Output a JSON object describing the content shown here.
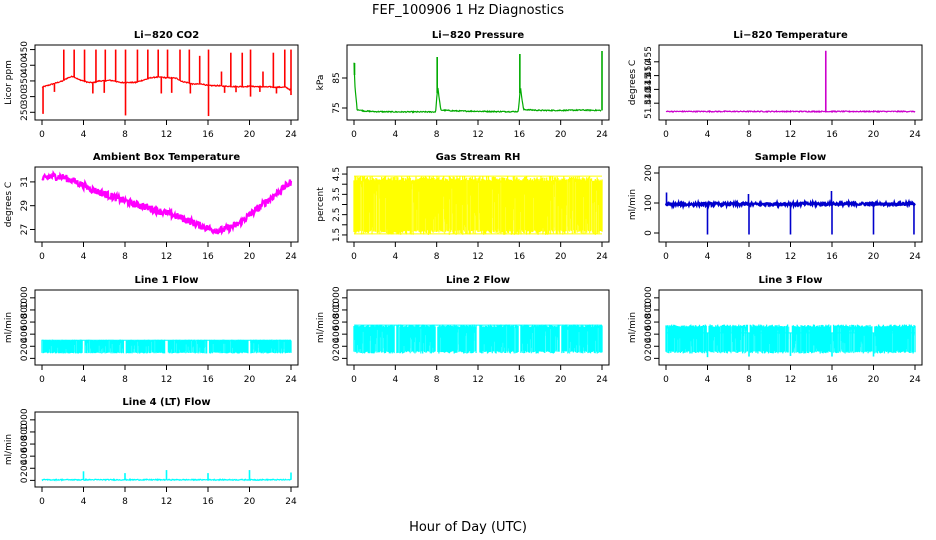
{
  "figure": {
    "title": "FEF_100906  1 Hz Diagnostics",
    "xlabel": "Hour of Day (UTC)"
  },
  "chart_data": [
    {
      "type": "line",
      "title": "Li−820 CO2",
      "ylabel": "Licor ppm",
      "color": "#ff0000",
      "xlim": [
        0,
        24
      ],
      "xticks": [
        0,
        4,
        8,
        12,
        16,
        20,
        24
      ],
      "ylim": [
        235,
        455
      ],
      "yticks": [
        250,
        300,
        350,
        400,
        450
      ],
      "series": [
        {
          "x": [
            0,
            0.5,
            1,
            1.5,
            2,
            2.5,
            3,
            3.5,
            4,
            4.5,
            5,
            5.5,
            6,
            6.5,
            7,
            7.5,
            8,
            8.5,
            9,
            9.5,
            10,
            10.5,
            11,
            11.5,
            12,
            12.5,
            13,
            13.5,
            14,
            14.5,
            15,
            15.5,
            16,
            16.5,
            17,
            17.5,
            18,
            18.5,
            19,
            19.5,
            20,
            20.5,
            21,
            21.5,
            22,
            22.5,
            23,
            23.5,
            24
          ],
          "y": [
            330,
            335,
            340,
            345,
            350,
            360,
            365,
            355,
            350,
            345,
            345,
            350,
            350,
            352,
            350,
            345,
            345,
            345,
            345,
            350,
            355,
            360,
            362,
            362,
            360,
            360,
            358,
            348,
            345,
            340,
            340,
            340,
            335,
            335,
            335,
            333,
            333,
            332,
            332,
            332,
            333,
            332,
            332,
            331,
            331,
            330,
            330,
            330,
            320
          ]
        }
      ],
      "spikes": [
        {
          "x": 2.1,
          "y": 450
        },
        {
          "x": 3.1,
          "y": 450
        },
        {
          "x": 4.1,
          "y": 450
        },
        {
          "x": 5.2,
          "y": 450
        },
        {
          "x": 6.1,
          "y": 450
        },
        {
          "x": 7.1,
          "y": 450
        },
        {
          "x": 8.05,
          "y": 450
        },
        {
          "x": 9.2,
          "y": 450
        },
        {
          "x": 10.2,
          "y": 450
        },
        {
          "x": 11.2,
          "y": 450
        },
        {
          "x": 12.1,
          "y": 450
        },
        {
          "x": 13.3,
          "y": 450
        },
        {
          "x": 14.2,
          "y": 450
        },
        {
          "x": 15.2,
          "y": 430
        },
        {
          "x": 16.05,
          "y": 450
        },
        {
          "x": 17.3,
          "y": 380
        },
        {
          "x": 18.2,
          "y": 440
        },
        {
          "x": 19.3,
          "y": 440
        },
        {
          "x": 20.1,
          "y": 450
        },
        {
          "x": 21.3,
          "y": 380
        },
        {
          "x": 22.3,
          "y": 440
        },
        {
          "x": 23.4,
          "y": 450
        },
        {
          "x": 24,
          "y": 450
        }
      ],
      "dips": [
        {
          "x": 0.1,
          "y": 245
        },
        {
          "x": 8.05,
          "y": 240
        },
        {
          "x": 16.05,
          "y": 238
        },
        {
          "x": 1.2,
          "y": 315
        },
        {
          "x": 4.9,
          "y": 310
        },
        {
          "x": 6.0,
          "y": 312
        },
        {
          "x": 11.5,
          "y": 310
        },
        {
          "x": 12.5,
          "y": 312
        },
        {
          "x": 14.3,
          "y": 310
        },
        {
          "x": 17.6,
          "y": 312
        },
        {
          "x": 18.7,
          "y": 314
        },
        {
          "x": 20.1,
          "y": 300
        },
        {
          "x": 21.0,
          "y": 315
        },
        {
          "x": 22.6,
          "y": 310
        },
        {
          "x": 24,
          "y": 305
        }
      ]
    },
    {
      "type": "line",
      "title": "Li−820 Pressure",
      "ylabel": "kPa",
      "color": "#00aa00",
      "xlim": [
        0,
        24
      ],
      "xticks": [
        0,
        4,
        8,
        12,
        16,
        20,
        24
      ],
      "ylim": [
        72,
        95
      ],
      "yticks": [
        75,
        85
      ],
      "series": [
        {
          "x": [
            0,
            0.1,
            0.3,
            1,
            2,
            4,
            6,
            7.9,
            8.1,
            8.4,
            10,
            12,
            14,
            15.9,
            16.1,
            16.4,
            18,
            20,
            22,
            23.9
          ],
          "y": [
            90,
            82,
            74.5,
            74,
            73.8,
            73.7,
            73.7,
            73.7,
            82,
            74.3,
            74,
            73.9,
            73.8,
            73.8,
            82,
            74.5,
            74.2,
            74.2,
            74.3,
            74.2
          ]
        }
      ],
      "spikes": [
        {
          "x": 0.05,
          "y": 90
        },
        {
          "x": 8.05,
          "y": 92
        },
        {
          "x": 16.05,
          "y": 93
        },
        {
          "x": 24,
          "y": 94
        }
      ],
      "dips": []
    },
    {
      "type": "line",
      "title": "Li−820 Temperature",
      "ylabel": "degrees C",
      "color": "#cc00cc",
      "xlim": [
        0,
        24
      ],
      "xticks": [
        0,
        4,
        8,
        12,
        16,
        20,
        24
      ],
      "ylim": [
        51.435,
        51.46
      ],
      "yticks": [
        51.44,
        51.445,
        51.45,
        51.455
      ],
      "ytick_labels": [
        "51.440",
        "51.445",
        "51.450",
        "51.455"
      ],
      "series": [
        {
          "x": [
            0,
            24
          ],
          "y": [
            51.437,
            51.437
          ]
        }
      ],
      "spikes": [
        {
          "x": 15.4,
          "y": 51.459
        }
      ],
      "dips": []
    },
    {
      "type": "line",
      "title": "Ambient Box Temperature",
      "ylabel": "degrees C",
      "color": "#ff00ff",
      "xlim": [
        0,
        24
      ],
      "xticks": [
        0,
        4,
        8,
        12,
        16,
        20,
        24
      ],
      "ylim": [
        26.2,
        32.0
      ],
      "yticks": [
        27,
        29,
        31
      ],
      "band": 0.6,
      "series": [
        {
          "x": [
            0,
            1,
            2,
            3,
            4,
            5,
            6,
            7,
            8,
            9,
            10,
            11,
            12,
            13,
            14,
            15,
            16,
            17,
            18,
            19,
            20,
            21,
            22,
            23,
            24
          ],
          "y": [
            31.2,
            31.5,
            31.4,
            31.1,
            30.7,
            30.3,
            30.0,
            29.7,
            29.4,
            29.1,
            28.9,
            28.6,
            28.4,
            28.1,
            27.8,
            27.4,
            27.1,
            26.9,
            27.1,
            27.5,
            28.2,
            28.9,
            29.6,
            30.3,
            31.0
          ]
        }
      ],
      "spikes": [],
      "dips": []
    },
    {
      "type": "line",
      "title": "Gas Stream RH",
      "ylabel": "percent",
      "color": "#ffff00",
      "xlim": [
        0,
        24
      ],
      "xticks": [
        0,
        4,
        8,
        12,
        16,
        20,
        24
      ],
      "ylim": [
        1.3,
        4.7
      ],
      "yticks": [
        1.5,
        2.5,
        3.5,
        4.5
      ],
      "yticks_minor": [
        2.0,
        3.0,
        4.0
      ],
      "ytick_labels": [
        "1.5",
        "2.5",
        "3.5",
        "4.5"
      ],
      "filled_range": [
        1.5,
        4.4
      ],
      "series": [
        {
          "x": [
            0,
            24
          ],
          "y": [
            4.4,
            4.4
          ]
        },
        {
          "x": [
            0,
            24
          ],
          "y": [
            1.55,
            1.55
          ]
        }
      ],
      "spikes": [],
      "dips": []
    },
    {
      "type": "line",
      "title": "Sample Flow",
      "ylabel": "ml/min",
      "color": "#0000cc",
      "xlim": [
        0,
        24
      ],
      "xticks": [
        0,
        4,
        8,
        12,
        16,
        20,
        24
      ],
      "ylim": [
        -20,
        210
      ],
      "yticks": [
        0,
        100,
        200
      ],
      "band": 10,
      "series": [
        {
          "x": [
            0,
            4,
            8,
            12,
            16,
            20,
            24
          ],
          "y": [
            95,
            96,
            96,
            97,
            97,
            97,
            97
          ]
        }
      ],
      "spikes": [
        {
          "x": 0.05,
          "y": 135
        },
        {
          "x": 7.95,
          "y": 130
        },
        {
          "x": 15.95,
          "y": 140
        }
      ],
      "dips": [
        {
          "x": 4,
          "y": -5
        },
        {
          "x": 8,
          "y": -5
        },
        {
          "x": 12,
          "y": -5
        },
        {
          "x": 16,
          "y": -5
        },
        {
          "x": 20,
          "y": -5
        },
        {
          "x": 23.9,
          "y": -5
        }
      ]
    },
    {
      "type": "line",
      "title": "Line 1 Flow",
      "ylabel": "ml/min",
      "color": "#00ffff",
      "xlim": [
        0,
        24
      ],
      "xticks": [
        0,
        4,
        8,
        12,
        16,
        20,
        24
      ],
      "ylim": [
        -60,
        1080
      ],
      "yticks": [
        0,
        200,
        400,
        600,
        800,
        1000
      ],
      "filled_range": [
        80,
        310
      ],
      "gaps": [
        4,
        8,
        12,
        16,
        20
      ],
      "series": [
        {
          "x": [
            0,
            24
          ],
          "y": [
            300,
            300
          ]
        }
      ],
      "spikes": [],
      "dips": []
    },
    {
      "type": "line",
      "title": "Line 2 Flow",
      "ylabel": "ml/min",
      "color": "#00ffff",
      "xlim": [
        0,
        24
      ],
      "xticks": [
        0,
        4,
        8,
        12,
        16,
        20,
        24
      ],
      "ylim": [
        -60,
        1080
      ],
      "yticks": [
        0,
        200,
        400,
        600,
        800,
        1000
      ],
      "filled_range": [
        80,
        560
      ],
      "gaps": [
        4,
        8,
        12,
        16,
        20
      ],
      "series": [
        {
          "x": [
            0,
            24
          ],
          "y": [
            550,
            550
          ]
        }
      ],
      "spikes": [],
      "dips": []
    },
    {
      "type": "line",
      "title": "Line 3 Flow",
      "ylabel": "ml/min",
      "color": "#00ffff",
      "xlim": [
        0,
        24
      ],
      "xticks": [
        0,
        4,
        8,
        12,
        16,
        20,
        24
      ],
      "ylim": [
        -60,
        1080
      ],
      "yticks": [
        0,
        200,
        400,
        600,
        800,
        1000
      ],
      "filled_range": [
        80,
        560
      ],
      "gaps": [
        4,
        8,
        12,
        16,
        20
      ],
      "series": [
        {
          "x": [
            0,
            24
          ],
          "y": [
            420,
            420
          ]
        }
      ],
      "spikes": [],
      "dips": [
        {
          "x": 4,
          "y": 20
        },
        {
          "x": 8,
          "y": 30
        },
        {
          "x": 12,
          "y": 40
        },
        {
          "x": 16,
          "y": 30
        },
        {
          "x": 20,
          "y": 30
        }
      ]
    },
    {
      "type": "line",
      "title": "Line 4 (LT) Flow",
      "ylabel": "ml/min",
      "color": "#00ffff",
      "xlim": [
        0,
        24
      ],
      "xticks": [
        0,
        4,
        8,
        12,
        16,
        20,
        24
      ],
      "ylim": [
        -60,
        1080
      ],
      "yticks": [
        0,
        200,
        400,
        600,
        800,
        1000
      ],
      "series": [
        {
          "x": [
            0,
            24
          ],
          "y": [
            10,
            10
          ]
        }
      ],
      "spikes": [
        {
          "x": 4,
          "y": 150
        },
        {
          "x": 8,
          "y": 120
        },
        {
          "x": 12,
          "y": 170
        },
        {
          "x": 16,
          "y": 120
        },
        {
          "x": 20,
          "y": 170
        },
        {
          "x": 24,
          "y": 130
        }
      ],
      "dips": []
    }
  ]
}
